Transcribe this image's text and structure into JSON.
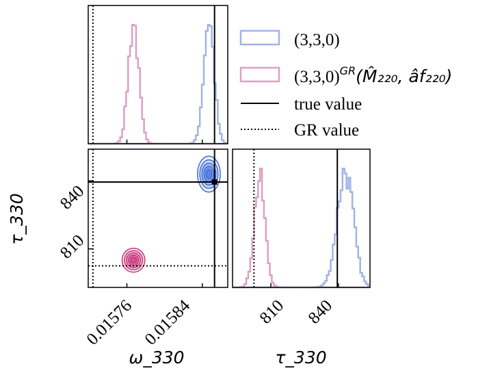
{
  "chart_data": {
    "type": "corner",
    "parameters": [
      {
        "name": "omega_330",
        "label": "ω_330",
        "range": [
          0.015719,
          0.015867
        ],
        "ticks": [
          0.01576,
          0.01584
        ],
        "tick_labels": [
          "0.01576",
          "0.01584"
        ]
      },
      {
        "name": "tau_330",
        "label": "τ_330",
        "range": [
          793,
          854
        ],
        "ticks": [
          810,
          840
        ],
        "tick_labels": [
          "810",
          "840"
        ]
      }
    ],
    "true_value": {
      "omega_330": 0.015853,
      "tau_330": 839.5
    },
    "gr_value": {
      "omega_330": 0.015724,
      "tau_330": 802.5
    },
    "series": [
      {
        "name": "(3,3,0)",
        "color": "#a3b3e6",
        "contour_color": "#3c6ad8",
        "mean": {
          "omega_330": 0.015847,
          "tau_330": 843
        },
        "std": {
          "omega_330": 5.5e-06,
          "tau_330": 3.6
        }
      },
      {
        "name": "(3,3,0)",
        "name_sup": "GR",
        "name_rest": "(M̂₂₂₀, âf₂₂₀)",
        "color": "#de9fc2",
        "contour_color": "#c8307a",
        "mean": {
          "omega_330": 0.015767,
          "tau_330": 805
        },
        "std": {
          "omega_330": 5.5e-06,
          "tau_330": 2.4
        }
      }
    ],
    "legend": [
      {
        "type": "patch",
        "series": 0,
        "label": "(3,3,0)"
      },
      {
        "type": "patch",
        "series": 1,
        "label": "(3,3,0)",
        "sup": "GR",
        "rest": "(M̂₂₂₀, âf₂₂₀)"
      },
      {
        "type": "solid-line",
        "label": "true value"
      },
      {
        "type": "dotted-line",
        "label": "GR value"
      }
    ],
    "legend_placement": "top-right"
  }
}
